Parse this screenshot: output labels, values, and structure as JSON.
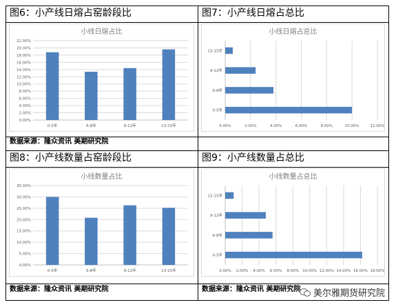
{
  "panels": [
    {
      "heading": "图6：小产线日熔占窑龄段比",
      "source": "数据来源：隆众资讯  美期研究院",
      "chart_data": {
        "type": "bar",
        "orientation": "vertical",
        "title": "小线日熔占比",
        "categories": [
          "0-5年",
          "6-8年",
          "9-12年",
          "13-15年"
        ],
        "values": [
          18.8,
          13.4,
          14.4,
          19.6
        ],
        "yticks": [
          "0.00%",
          "2.00%",
          "4.00%",
          "6.00%",
          "8.00%",
          "10.00%",
          "12.00%",
          "14.00%",
          "16.00%",
          "18.00%",
          "20.00%",
          "22.00%"
        ],
        "ylim": [
          0,
          22
        ],
        "grid": true,
        "color": "#4f81bd"
      }
    },
    {
      "heading": "图7：小产线日熔占总比",
      "source": "",
      "chart_data": {
        "type": "bar",
        "orientation": "horizontal",
        "title": "小线日熔占总比",
        "categories": [
          "0-5年",
          "6-8年",
          "9-12年",
          "13-15年"
        ],
        "values": [
          10.0,
          3.8,
          2.4,
          0.6
        ],
        "xticks": [
          "0.00%",
          "2.00%",
          "4.00%",
          "6.00%",
          "8.00%",
          "10.00%",
          "12.00%"
        ],
        "xlim": [
          0,
          12
        ],
        "grid": true,
        "color": "#4f81bd"
      }
    },
    {
      "heading": "图8：小产线数量占窑龄段比",
      "source": "数据来源：隆众资讯  美期研究院",
      "chart_data": {
        "type": "bar",
        "orientation": "vertical",
        "title": "小线数量占比",
        "categories": [
          "0-5年",
          "6-8年",
          "9-12年",
          "13-15年"
        ],
        "values": [
          30.0,
          20.8,
          26.3,
          25.2
        ],
        "yticks": [
          "0.00%",
          "5.00%",
          "10.00%",
          "15.00%",
          "20.00%",
          "25.00%",
          "30.00%",
          "35.00%"
        ],
        "ylim": [
          0,
          35
        ],
        "grid": true,
        "color": "#4f81bd"
      }
    },
    {
      "heading": "图9：小产线数量占总比",
      "source": "数据来源：隆众资讯  美期研究院",
      "chart_data": {
        "type": "bar",
        "orientation": "horizontal",
        "title": "小线数量占总比",
        "categories": [
          "0-5年",
          "6-8年",
          "9-12年",
          "13-15年"
        ],
        "values": [
          16.2,
          5.6,
          4.8,
          1.0
        ],
        "xticks": [
          "0.00%",
          "2.00%",
          "4.00%",
          "6.00%",
          "8.00%",
          "10.00%",
          "12.00%",
          "14.00%",
          "16.00%",
          "18.00%"
        ],
        "xlim": [
          0,
          18
        ],
        "grid": true,
        "color": "#4f81bd"
      }
    }
  ],
  "watermark": {
    "text": "美尔雅期货研究院",
    "icon": "wechat-icon"
  }
}
